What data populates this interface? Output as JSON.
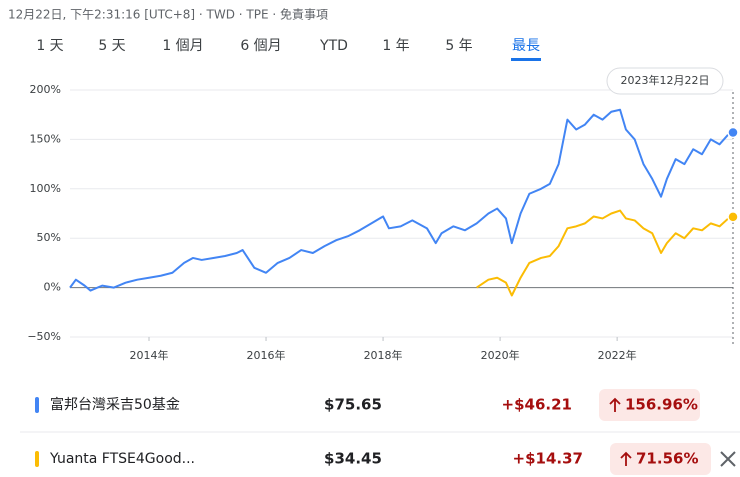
{
  "header": {
    "status": "12月22日, 下午2:31:16 [UTC+8] · TWD · TPE · 免責事項"
  },
  "tabs": [
    "1 天",
    "5 天",
    "1 個月",
    "6 個月",
    "YTD",
    "1 年",
    "5 年",
    "最長"
  ],
  "selected_tab": 7,
  "chart_data": {
    "type": "line",
    "annotation": "2023年12月22日",
    "x": [
      2012.65,
      2012.75,
      2012.9,
      2013.0,
      2013.2,
      2013.4,
      2013.6,
      2013.8,
      2014.0,
      2014.2,
      2014.4,
      2014.6,
      2014.75,
      2014.9,
      2015.1,
      2015.3,
      2015.5,
      2015.6,
      2015.8,
      2016.0,
      2016.2,
      2016.4,
      2016.6,
      2016.8,
      2017.0,
      2017.2,
      2017.4,
      2017.6,
      2017.8,
      2018.0,
      2018.1,
      2018.3,
      2018.5,
      2018.75,
      2018.9,
      2019.0,
      2019.2,
      2019.4,
      2019.6,
      2019.8,
      2019.95,
      2020.1,
      2020.2,
      2020.35,
      2020.5,
      2020.7,
      2020.85,
      2021.0,
      2021.15,
      2021.3,
      2021.45,
      2021.6,
      2021.75,
      2021.9,
      2022.05,
      2022.15,
      2022.3,
      2022.45,
      2022.6,
      2022.75,
      2022.85,
      2023.0,
      2023.15,
      2023.3,
      2023.45,
      2023.6,
      2023.75,
      2023.9,
      2023.98
    ],
    "series": [
      {
        "name": "富邦台灣采吉50基金",
        "color": "#4285f4",
        "values": [
          0,
          8,
          2,
          -3,
          2,
          0,
          5,
          8,
          10,
          12,
          15,
          25,
          30,
          28,
          30,
          32,
          35,
          38,
          20,
          15,
          25,
          30,
          38,
          35,
          42,
          48,
          52,
          58,
          65,
          72,
          60,
          62,
          68,
          60,
          45,
          55,
          62,
          58,
          65,
          75,
          80,
          70,
          45,
          75,
          95,
          100,
          105,
          125,
          170,
          160,
          165,
          175,
          170,
          178,
          180,
          160,
          150,
          125,
          110,
          92,
          110,
          130,
          125,
          140,
          135,
          150,
          145,
          155,
          156.96
        ]
      },
      {
        "name": "Yuanta FTSE4Good...",
        "color": "#fbbc04",
        "values": [
          null,
          null,
          null,
          null,
          null,
          null,
          null,
          null,
          null,
          null,
          null,
          null,
          null,
          null,
          null,
          null,
          null,
          null,
          null,
          null,
          null,
          null,
          null,
          null,
          null,
          null,
          null,
          null,
          null,
          null,
          null,
          null,
          null,
          null,
          null,
          null,
          null,
          null,
          0,
          8,
          10,
          5,
          -8,
          10,
          25,
          30,
          32,
          42,
          60,
          62,
          65,
          72,
          70,
          75,
          78,
          70,
          68,
          60,
          55,
          35,
          45,
          55,
          50,
          60,
          58,
          65,
          62,
          70,
          71.56
        ]
      }
    ],
    "xlim": [
      2012.65,
      2023.98
    ],
    "xticks": [
      {
        "value": 2014,
        "label": "2014年"
      },
      {
        "value": 2016,
        "label": "2016年"
      },
      {
        "value": 2018,
        "label": "2018年"
      },
      {
        "value": 2020,
        "label": "2020年"
      },
      {
        "value": 2022,
        "label": "2022年"
      }
    ],
    "ylim": [
      -50,
      200
    ],
    "yticks": [
      {
        "value": -50,
        "label": "−50%"
      },
      {
        "value": 0,
        "label": "0%"
      },
      {
        "value": 50,
        "label": "50%"
      },
      {
        "value": 100,
        "label": "100%"
      },
      {
        "value": 150,
        "label": "150%"
      },
      {
        "value": 200,
        "label": "200%"
      }
    ],
    "grid": true
  },
  "holdings": [
    {
      "price": "$75.65",
      "change": "+$46.21",
      "change_pct": "156.96%"
    },
    {
      "price": "$34.45",
      "change": "+$14.37",
      "change_pct": "71.56%"
    }
  ]
}
